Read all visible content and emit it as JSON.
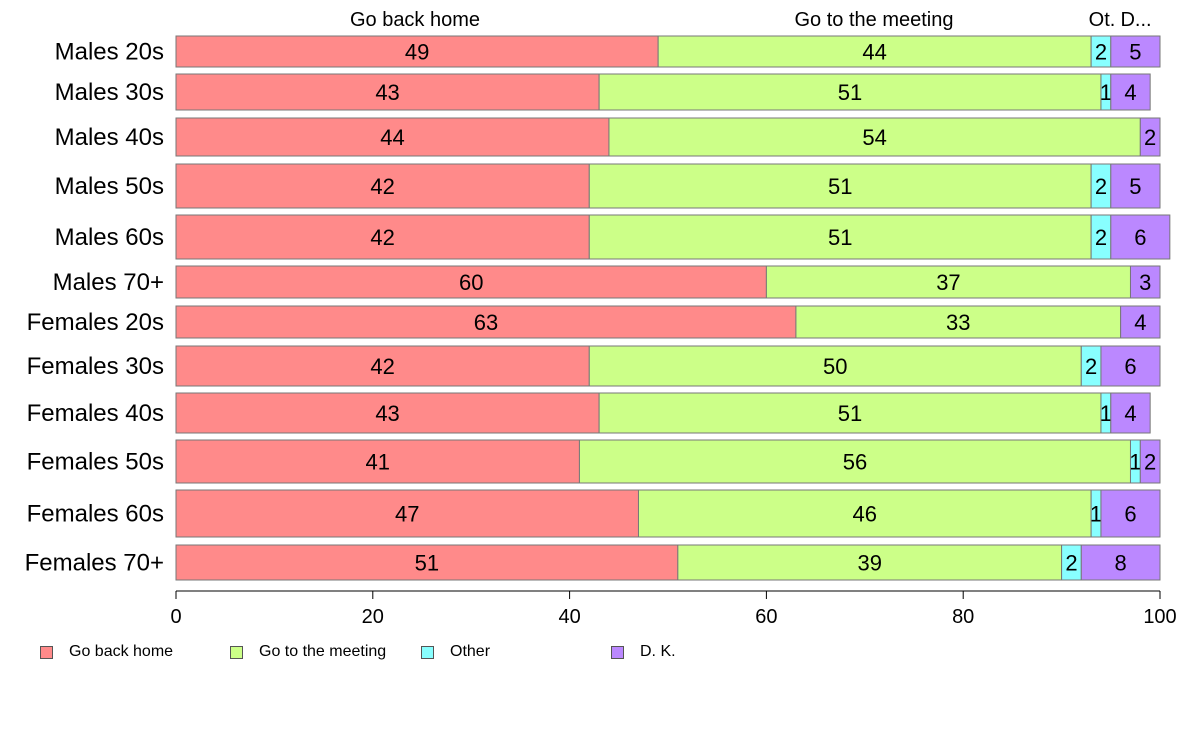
{
  "chart_data": {
    "type": "bar",
    "orientation": "horizontal",
    "stacked": true,
    "categories": [
      "Males 20s",
      "Males 30s",
      "Males 40s",
      "Males 50s",
      "Males 60s",
      "Males 70+",
      "Females 20s",
      "Females 30s",
      "Females 40s",
      "Females 50s",
      "Females 60s",
      "Females 70+"
    ],
    "series": [
      {
        "name": "Go back home",
        "color": "#ff8a8a",
        "values": [
          49,
          43,
          44,
          42,
          42,
          60,
          63,
          42,
          43,
          41,
          47,
          51
        ]
      },
      {
        "name": "Go to the meeting",
        "color": "#ccff88",
        "values": [
          44,
          51,
          54,
          51,
          51,
          37,
          33,
          50,
          51,
          56,
          46,
          39
        ]
      },
      {
        "name": "Other",
        "color": "#88ffff",
        "values": [
          2,
          1,
          0,
          2,
          2,
          0,
          0,
          2,
          1,
          1,
          1,
          2
        ]
      },
      {
        "name": "D. K.",
        "color": "#bb88ff",
        "values": [
          5,
          4,
          2,
          5,
          6,
          3,
          4,
          6,
          4,
          2,
          6,
          8
        ]
      }
    ],
    "top_labels": [
      "Go back home",
      "Go to the meeting",
      "Ot.",
      "D..."
    ],
    "x_ticks": [
      0,
      20,
      40,
      60,
      80,
      100
    ],
    "xlim": [
      0,
      100
    ],
    "legend_position": "bottom",
    "grid": false
  }
}
